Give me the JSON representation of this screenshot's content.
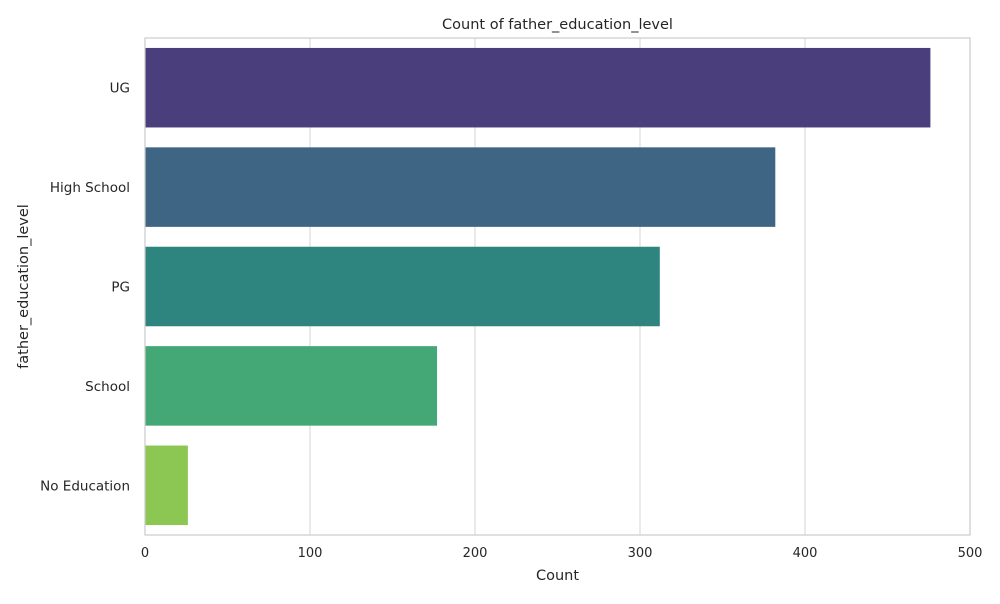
{
  "chart_data": {
    "type": "bar",
    "orientation": "horizontal",
    "title": "Count of father_education_level",
    "xlabel": "Count",
    "ylabel": "father_education_level",
    "categories": [
      "UG",
      "High School",
      "PG",
      "School",
      "No Education"
    ],
    "values": [
      476,
      382,
      312,
      177,
      26
    ],
    "xlim": [
      0,
      500
    ],
    "xticks": [
      0,
      100,
      200,
      300,
      400,
      500
    ],
    "colors": [
      "#4a3f7c",
      "#3e6584",
      "#2e847e",
      "#44a876",
      "#8cc653"
    ],
    "grid": true,
    "legend": "none"
  }
}
